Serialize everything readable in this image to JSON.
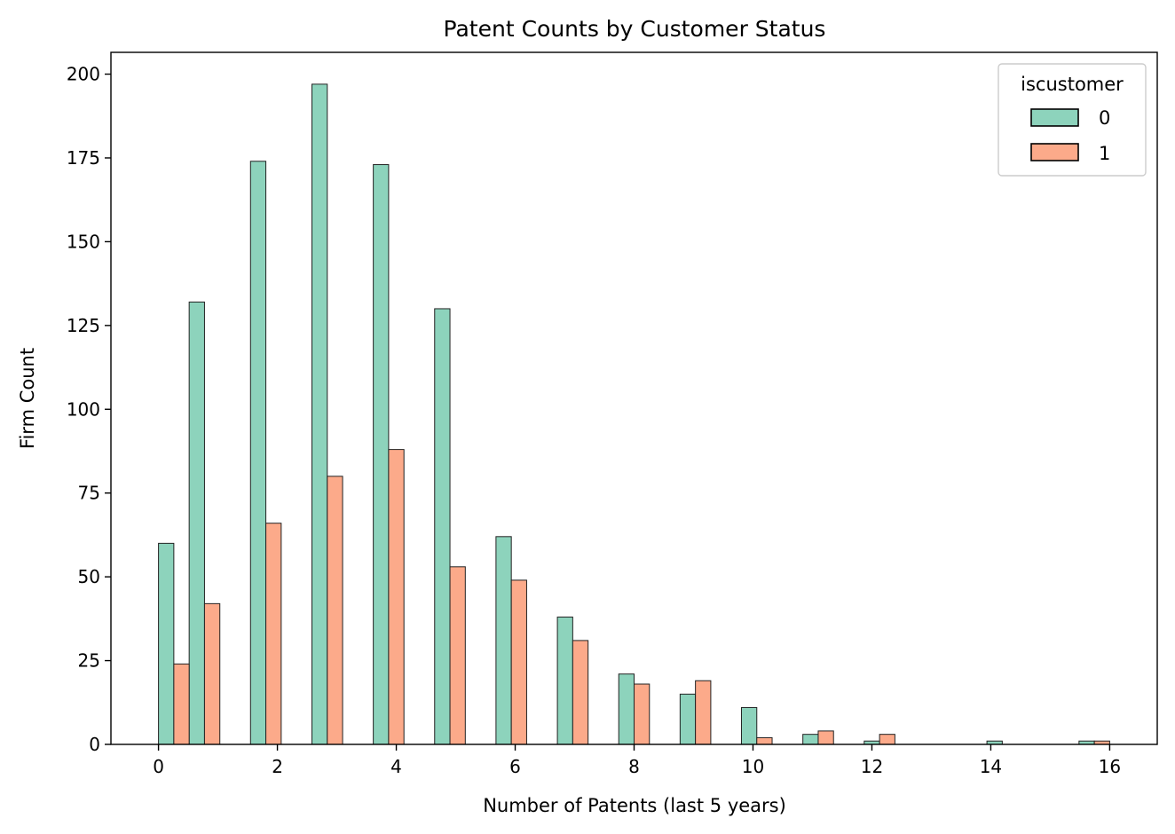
{
  "chart_data": {
    "type": "bar",
    "title": "Patent Counts by Customer Status",
    "xlabel": "Number of Patents (last 5 years)",
    "ylabel": "Firm Count",
    "xlim": [
      -0.8,
      16.8
    ],
    "ylim": [
      0,
      206.5
    ],
    "xticks": [
      0,
      2,
      4,
      6,
      8,
      10,
      12,
      14,
      16
    ],
    "yticks": [
      0,
      25,
      50,
      75,
      100,
      125,
      150,
      175,
      200
    ],
    "grid": false,
    "legend": {
      "title": "iscustomer",
      "placement": "top-right"
    },
    "bin_width": 0.516,
    "bar_width": 0.258,
    "bin_starts": [
      0,
      0.516,
      1.548,
      2.581,
      3.613,
      4.645,
      5.677,
      6.71,
      7.742,
      8.774,
      9.806,
      10.839,
      11.871,
      13.935,
      15.484
    ],
    "series": [
      {
        "name": "0",
        "color": "#8dd3bc",
        "values": [
          60,
          132,
          174,
          197,
          173,
          130,
          62,
          38,
          21,
          15,
          11,
          3,
          1,
          1,
          1
        ]
      },
      {
        "name": "1",
        "color": "#fcaa8a",
        "values": [
          24,
          42,
          66,
          80,
          88,
          53,
          49,
          31,
          18,
          19,
          2,
          4,
          3,
          0,
          1
        ]
      }
    ]
  }
}
